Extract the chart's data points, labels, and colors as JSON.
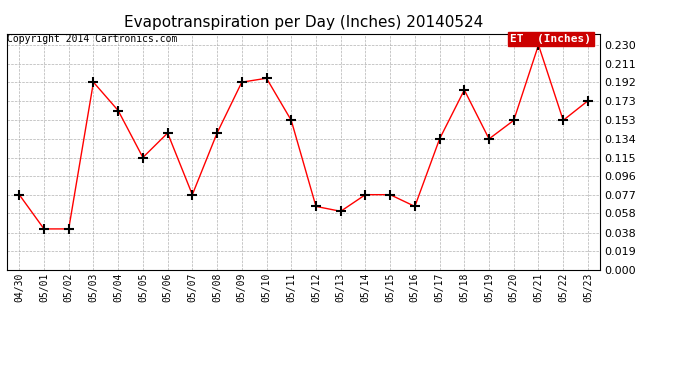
{
  "title": "Evapotranspiration per Day (Inches) 20140524",
  "copyright_text": "Copyright 2014 Cartronics.com",
  "legend_label": "ET  (Inches)",
  "x_labels": [
    "04/30",
    "05/01",
    "05/02",
    "05/03",
    "05/04",
    "05/05",
    "05/06",
    "05/07",
    "05/08",
    "05/09",
    "05/10",
    "05/11",
    "05/12",
    "05/13",
    "05/14",
    "05/15",
    "05/16",
    "05/17",
    "05/18",
    "05/19",
    "05/20",
    "05/21",
    "05/22",
    "05/23"
  ],
  "y_values": [
    0.077,
    0.042,
    0.042,
    0.192,
    0.163,
    0.115,
    0.14,
    0.077,
    0.14,
    0.192,
    0.196,
    0.153,
    0.065,
    0.06,
    0.077,
    0.077,
    0.065,
    0.134,
    0.184,
    0.134,
    0.153,
    0.23,
    0.153,
    0.173
  ],
  "ylim": [
    0.0,
    0.2415
  ],
  "yticks": [
    0.0,
    0.019,
    0.038,
    0.058,
    0.077,
    0.096,
    0.115,
    0.134,
    0.153,
    0.173,
    0.192,
    0.211,
    0.23
  ],
  "line_color": "red",
  "marker": "+",
  "marker_color": "black",
  "marker_size": 7,
  "marker_linewidth": 1.5,
  "line_width": 1.0,
  "grid_color": "#aaaaaa",
  "background_color": "#ffffff",
  "plot_bg_color": "#ffffff",
  "title_fontsize": 11,
  "copyright_fontsize": 7,
  "tick_fontsize": 7,
  "ytick_fontsize": 8,
  "legend_bg_color": "#cc0000",
  "legend_text_color": "white",
  "legend_fontsize": 8
}
